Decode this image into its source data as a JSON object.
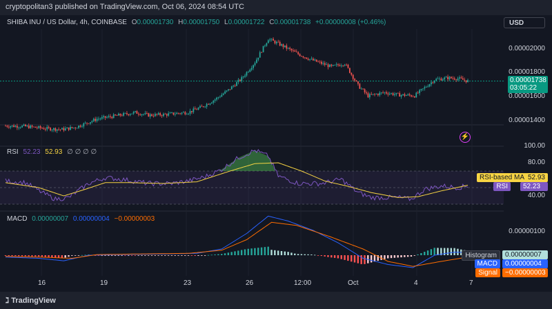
{
  "header": {
    "published": "cryptopolitan3 published on TradingView.com, Oct 06, 2024 08:54 UTC"
  },
  "symbol": {
    "name": "SHIBA INU / US Dollar, 4h, COINBASE",
    "o_label": "O",
    "o": "0.00001730",
    "h_label": "H",
    "h": "0.00001750",
    "l_label": "L",
    "l": "0.00001722",
    "c_label": "C",
    "c": "0.00001738",
    "change": "+0.00000008 (+0.46%)"
  },
  "currency_button": "USD",
  "price_axis": {
    "labels": [
      "0.00002000",
      "0.00001800",
      "0.00001600",
      "0.00001400"
    ],
    "current_price": "0.00001738",
    "countdown": "03:05:22"
  },
  "rsi": {
    "title": "RSI",
    "value1": "52.23",
    "value2": "52.93",
    "placeholders": "∅ ∅ ∅ ∅",
    "axis": [
      "100.00",
      "80.00",
      "40.00"
    ],
    "tag_ma_label": "RSI-based MA",
    "tag_ma": "52.93",
    "tag_rsi_label": "RSI",
    "tag_rsi": "52.23"
  },
  "macd": {
    "title": "MACD",
    "v1": "0.00000007",
    "v2": "0.00000004",
    "v3": "−0.00000003",
    "axis": [
      "0.00000100"
    ],
    "tag_hist_label": "Histogram",
    "tag_hist": "0.00000007",
    "tag_macd_label": "MACD",
    "tag_macd": "0.00000004",
    "tag_signal_label": "Signal",
    "tag_signal": "−0.00000003"
  },
  "time_axis": [
    "16",
    "19",
    "23",
    "26",
    "12:00",
    "Oct",
    "4",
    "7"
  ],
  "footer": {
    "brand": "TradingView"
  },
  "colors": {
    "up": "#26a69a",
    "down": "#ef5350",
    "rsi": "#7e57c2",
    "rsi_ma": "#f7d443",
    "macd": "#2962ff",
    "signal": "#ff6d00",
    "price_tag": "#089981"
  },
  "chart_data": {
    "type": "candlestick",
    "price_anchors": [
      [
        0,
        1.353e-05
      ],
      [
        12,
        1.348e-05
      ],
      [
        24,
        1.33e-05
      ],
      [
        34,
        1.322e-05
      ],
      [
        42,
        1.34e-05
      ],
      [
        55,
        1.412e-05
      ],
      [
        66,
        1.438e-05
      ],
      [
        78,
        1.468e-05
      ],
      [
        86,
        1.445e-05
      ],
      [
        96,
        1.45e-05
      ],
      [
        110,
        1.47e-05
      ],
      [
        118,
        1.515e-05
      ],
      [
        126,
        1.58e-05
      ],
      [
        134,
        1.66e-05
      ],
      [
        142,
        1.76e-05
      ],
      [
        150,
        1.9e-05
      ],
      [
        158,
        2.1e-05
      ],
      [
        164,
        2.06e-05
      ],
      [
        176,
        1.97e-05
      ],
      [
        184,
        1.92e-05
      ],
      [
        196,
        1.86e-05
      ],
      [
        204,
        1.89e-05
      ],
      [
        212,
        1.7e-05
      ],
      [
        218,
        1.61e-05
      ],
      [
        228,
        1.64e-05
      ],
      [
        236,
        1.62e-05
      ],
      [
        246,
        1.612e-05
      ],
      [
        252,
        1.68e-05
      ],
      [
        258,
        1.75e-05
      ],
      [
        266,
        1.765e-05
      ],
      [
        272,
        1.76e-05
      ],
      [
        278,
        1.738e-05
      ]
    ],
    "rsi_anchors": [
      [
        0,
        58
      ],
      [
        12,
        56
      ],
      [
        22,
        44
      ],
      [
        30,
        36
      ],
      [
        38,
        38
      ],
      [
        50,
        55
      ],
      [
        60,
        62
      ],
      [
        70,
        60
      ],
      [
        86,
        55
      ],
      [
        100,
        55
      ],
      [
        110,
        58
      ],
      [
        120,
        63
      ],
      [
        130,
        72
      ],
      [
        140,
        86
      ],
      [
        150,
        95
      ],
      [
        158,
        88
      ],
      [
        164,
        64
      ],
      [
        176,
        55
      ],
      [
        190,
        55
      ],
      [
        202,
        60
      ],
      [
        212,
        44
      ],
      [
        220,
        38
      ],
      [
        236,
        38
      ],
      [
        244,
        36
      ],
      [
        252,
        48
      ],
      [
        262,
        52
      ],
      [
        272,
        50
      ],
      [
        278,
        52.23
      ]
    ],
    "rsi_ma_anchors": [
      [
        0,
        56
      ],
      [
        20,
        50
      ],
      [
        35,
        40
      ],
      [
        48,
        48
      ],
      [
        60,
        56
      ],
      [
        75,
        56
      ],
      [
        95,
        55
      ],
      [
        115,
        57
      ],
      [
        135,
        70
      ],
      [
        150,
        79
      ],
      [
        164,
        80
      ],
      [
        178,
        70
      ],
      [
        192,
        58
      ],
      [
        205,
        52
      ],
      [
        220,
        44
      ],
      [
        236,
        38
      ],
      [
        248,
        39
      ],
      [
        262,
        46
      ],
      [
        278,
        52.93
      ]
    ],
    "macd_anchors": [
      [
        0,
        -0.03
      ],
      [
        20,
        -0.05
      ],
      [
        35,
        -0.09
      ],
      [
        50,
        0.0
      ],
      [
        70,
        0.01
      ],
      [
        95,
        0.02
      ],
      [
        115,
        0.03
      ],
      [
        130,
        0.1
      ],
      [
        145,
        0.35
      ],
      [
        158,
        0.63
      ],
      [
        170,
        0.55
      ],
      [
        185,
        0.4
      ],
      [
        200,
        0.2
      ],
      [
        215,
        -0.05
      ],
      [
        230,
        -0.15
      ],
      [
        245,
        -0.2
      ],
      [
        258,
        0.0
      ],
      [
        270,
        0.05
      ],
      [
        278,
        0.04
      ]
    ],
    "signal_anchors": [
      [
        0,
        -0.02
      ],
      [
        20,
        -0.03
      ],
      [
        40,
        -0.05
      ],
      [
        55,
        0.01
      ],
      [
        80,
        0.02
      ],
      [
        110,
        0.03
      ],
      [
        130,
        0.08
      ],
      [
        145,
        0.25
      ],
      [
        160,
        0.53
      ],
      [
        175,
        0.48
      ],
      [
        195,
        0.3
      ],
      [
        215,
        0.1
      ],
      [
        230,
        -0.1
      ],
      [
        245,
        -0.18
      ],
      [
        262,
        -0.1
      ],
      [
        278,
        -0.03
      ]
    ],
    "macd_units": "1e-6 USD"
  }
}
